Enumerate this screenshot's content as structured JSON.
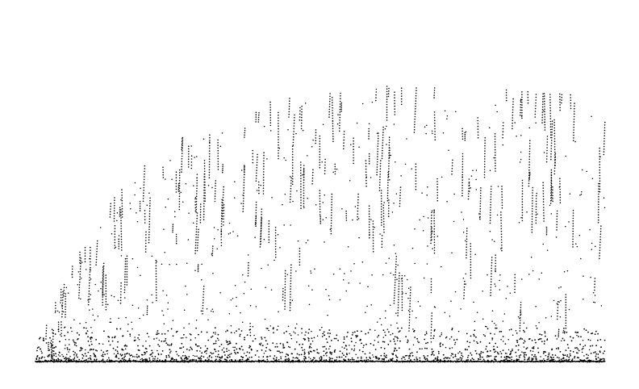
{
  "chart_data": {
    "type": "scatter",
    "title": "",
    "xlabel": "",
    "ylabel": "",
    "axes_visible": false,
    "grid": false,
    "legend": "none",
    "xlim": [
      0,
      1
    ],
    "ylim": [
      0,
      1
    ],
    "point_color": "#000000",
    "background_color": "#ffffff",
    "density_note_free": true,
    "generator": {
      "seed": 20240611,
      "n_points": 5200,
      "streak_count": 210,
      "baseline_points": 1500
    }
  }
}
